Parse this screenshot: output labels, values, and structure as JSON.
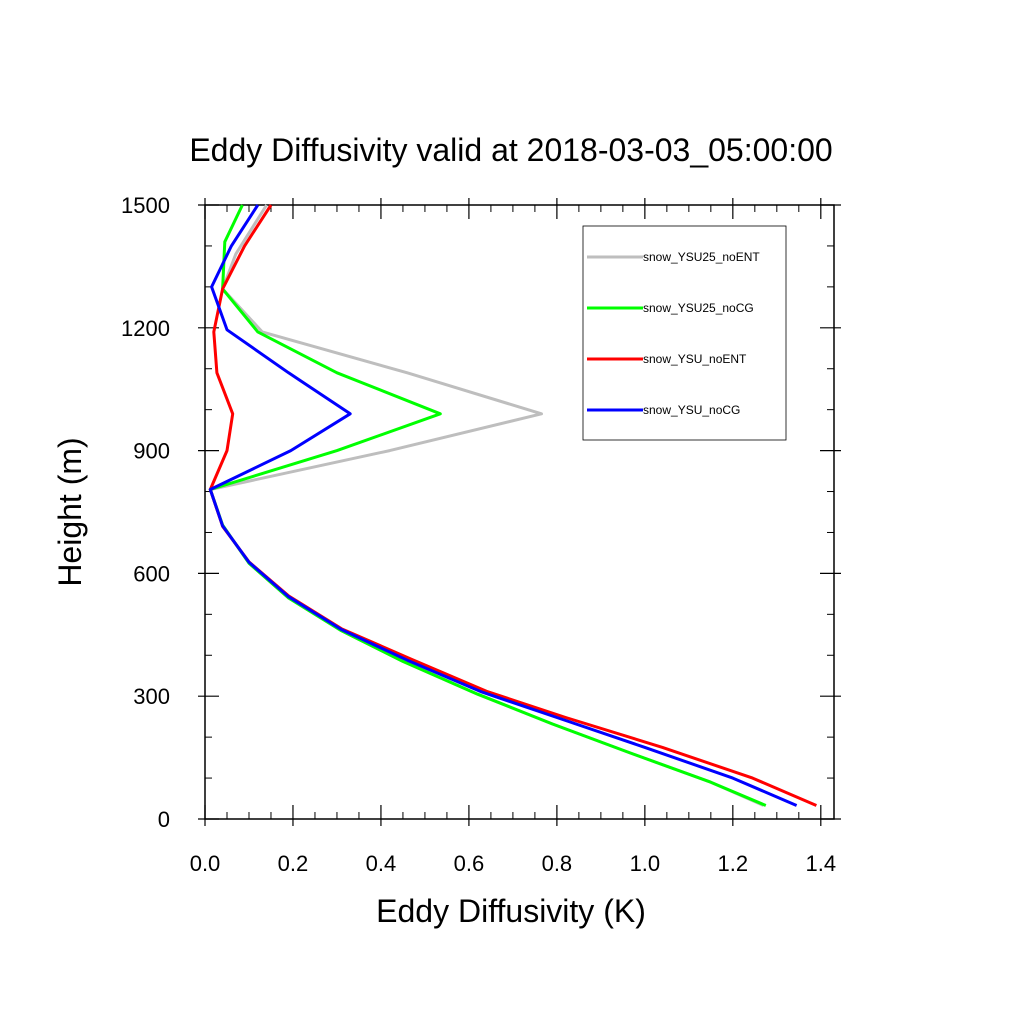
{
  "chart_data": {
    "type": "line",
    "title": "Eddy Diffusivity valid at 2018-03-03_05:00:00",
    "xlabel": "Eddy Diffusivity (K)",
    "ylabel": "Height (m)",
    "xlim": [
      0.0,
      1.43
    ],
    "ylim": [
      0,
      1500
    ],
    "x_ticks": [
      "0.0",
      "0.2",
      "0.4",
      "0.6",
      "0.8",
      "1.0",
      "1.2",
      "1.4"
    ],
    "y_ticks": [
      "0",
      "300",
      "600",
      "900",
      "1200",
      "1500"
    ],
    "x_tick_values": [
      0.0,
      0.2,
      0.4,
      0.6,
      0.8,
      1.0,
      1.2,
      1.4
    ],
    "y_tick_values": [
      0,
      300,
      600,
      900,
      1200,
      1500
    ],
    "x_minor_step": 0.05,
    "y_minor_step": 100,
    "grid": false,
    "legend_position": "top-right",
    "series": [
      {
        "name": "snow_YSU25_noENT",
        "color": "#bebebe",
        "points": [
          [
            1.27,
            33
          ],
          [
            1.15,
            90
          ],
          [
            0.97,
            160
          ],
          [
            0.79,
            232
          ],
          [
            0.62,
            305
          ],
          [
            0.45,
            385
          ],
          [
            0.31,
            460
          ],
          [
            0.19,
            540
          ],
          [
            0.1,
            625
          ],
          [
            0.04,
            718
          ],
          [
            0.012,
            805
          ],
          [
            0.42,
            900
          ],
          [
            0.765,
            990
          ],
          [
            0.46,
            1090
          ],
          [
            0.13,
            1190
          ],
          [
            0.04,
            1295
          ],
          [
            0.07,
            1380
          ],
          [
            0.14,
            1500
          ]
        ]
      },
      {
        "name": "snow_YSU25_noCG",
        "color": "#00ff00",
        "points": [
          [
            1.275,
            33
          ],
          [
            1.15,
            90
          ],
          [
            0.97,
            160
          ],
          [
            0.79,
            232
          ],
          [
            0.62,
            305
          ],
          [
            0.45,
            385
          ],
          [
            0.31,
            460
          ],
          [
            0.19,
            540
          ],
          [
            0.1,
            625
          ],
          [
            0.04,
            718
          ],
          [
            0.012,
            805
          ],
          [
            0.3,
            900
          ],
          [
            0.535,
            990
          ],
          [
            0.3,
            1090
          ],
          [
            0.12,
            1190
          ],
          [
            0.04,
            1295
          ],
          [
            0.045,
            1410
          ],
          [
            0.085,
            1500
          ]
        ]
      },
      {
        "name": "snow_YSU_noENT",
        "color": "#ff0000",
        "points": [
          [
            1.39,
            33
          ],
          [
            1.245,
            100
          ],
          [
            1.04,
            175
          ],
          [
            0.82,
            248
          ],
          [
            0.64,
            312
          ],
          [
            0.47,
            390
          ],
          [
            0.31,
            465
          ],
          [
            0.19,
            545
          ],
          [
            0.1,
            628
          ],
          [
            0.04,
            715
          ],
          [
            0.012,
            805
          ],
          [
            0.05,
            900
          ],
          [
            0.063,
            990
          ],
          [
            0.027,
            1090
          ],
          [
            0.02,
            1190
          ],
          [
            0.04,
            1295
          ],
          [
            0.09,
            1400
          ],
          [
            0.15,
            1500
          ]
        ]
      },
      {
        "name": "snow_YSU_noCG",
        "color": "#0000ff",
        "points": [
          [
            1.345,
            33
          ],
          [
            1.2,
            100
          ],
          [
            1.0,
            175
          ],
          [
            0.8,
            248
          ],
          [
            0.63,
            310
          ],
          [
            0.46,
            388
          ],
          [
            0.31,
            463
          ],
          [
            0.19,
            543
          ],
          [
            0.1,
            627
          ],
          [
            0.04,
            716
          ],
          [
            0.012,
            805
          ],
          [
            0.195,
            900
          ],
          [
            0.33,
            990
          ],
          [
            0.19,
            1090
          ],
          [
            0.05,
            1195
          ],
          [
            0.015,
            1300
          ],
          [
            0.06,
            1400
          ],
          [
            0.12,
            1500
          ]
        ]
      }
    ]
  }
}
